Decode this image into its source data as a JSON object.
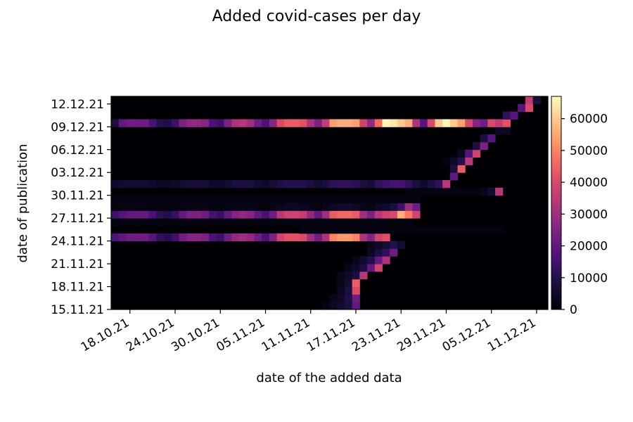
{
  "chart_data": {
    "type": "heatmap",
    "title": "Added covid-cases per day",
    "xlabel": "date of the added data",
    "ylabel": "date of publication",
    "colormap": "magma",
    "vmin": 0,
    "vmax": 67000,
    "x_range": [
      "16.10.21",
      "12.12.21"
    ],
    "y_range": [
      "15.11.21",
      "12.12.21"
    ],
    "x_tick_labels": [
      "18.10.21",
      "24.10.21",
      "30.10.21",
      "05.11.21",
      "11.11.21",
      "17.11.21",
      "23.11.21",
      "29.11.21",
      "05.12.21",
      "11.12.21"
    ],
    "y_tick_labels": [
      "15.11.21",
      "18.11.21",
      "21.11.21",
      "24.11.21",
      "27.11.21",
      "30.11.21",
      "03.12.21",
      "06.12.21",
      "09.12.21",
      "12.12.21"
    ],
    "colorbar_ticks": [
      "0",
      "10000",
      "20000",
      "30000",
      "40000",
      "50000",
      "60000"
    ],
    "colorbar_values": [
      0,
      10000,
      20000,
      30000,
      40000,
      50000,
      60000
    ],
    "rows": [
      {
        "publication": "15.11.21",
        "start": "13.11.21",
        "values": [
          2000,
          4000,
          6000,
          8000,
          20000
        ]
      },
      {
        "publication": "16.11.21",
        "start": "14.11.21",
        "values": [
          3000,
          5000,
          9000,
          22000
        ]
      },
      {
        "publication": "17.11.21",
        "start": "15.11.21",
        "values": [
          4000,
          8000,
          40000
        ]
      },
      {
        "publication": "18.11.21",
        "start": "15.11.21",
        "values": [
          3000,
          6000,
          44000
        ]
      },
      {
        "publication": "19.11.21",
        "start": "15.11.21",
        "values": [
          3000,
          5000,
          8000,
          34000
        ]
      },
      {
        "publication": "20.11.21",
        "start": "16.11.21",
        "values": [
          3000,
          5000,
          8000,
          20000,
          38000
        ]
      },
      {
        "publication": "21.11.21",
        "start": "17.11.21",
        "values": [
          3000,
          6000,
          9000,
          20000,
          32000
        ]
      },
      {
        "publication": "22.11.21",
        "start": "19.11.21",
        "values": [
          4000,
          8000,
          12000,
          22000
        ]
      },
      {
        "publication": "23.11.21",
        "start": "19.11.21",
        "values": [
          3000,
          5000,
          7000,
          10000,
          6000
        ]
      },
      {
        "publication": "24.11.21",
        "start": "16.10.21",
        "values": [
          16000,
          20000,
          22000,
          22000,
          22000,
          18000,
          12000,
          10000,
          14000,
          22000,
          26000,
          26000,
          24000,
          16000,
          14000,
          22000,
          28000,
          30000,
          28000,
          22000,
          16000,
          24000,
          38000,
          42000,
          42000,
          40000,
          30000,
          22000,
          32000,
          50000,
          53000,
          53000,
          50000,
          32000,
          26000,
          38000,
          42000
        ]
      },
      {
        "publication": "25.11.21",
        "start": "10.11.21",
        "values": [
          1500,
          1500,
          1500,
          1500,
          1500,
          1500,
          1500,
          1500,
          1500,
          1500,
          1500,
          1500,
          1500,
          1500,
          1500,
          1500,
          1500,
          1500,
          1500,
          1500,
          1500,
          1500,
          1500,
          1500,
          1500,
          1500,
          1500
        ]
      },
      {
        "publication": "26.11.21",
        "start": "16.10.21",
        "values": [
          1500,
          1500,
          1500,
          1500,
          1500,
          1500,
          1500,
          1500,
          1500,
          1500,
          1500,
          1500,
          1500,
          1500,
          1500,
          1500,
          1500,
          1500,
          1500,
          1500,
          1500,
          1500,
          1500,
          1500,
          1500,
          1500,
          1500,
          1500,
          1500,
          1500,
          1500,
          1500,
          1500,
          1500,
          1500,
          1500,
          1500,
          1500,
          1500,
          1500
        ]
      },
      {
        "publication": "27.11.21",
        "start": "16.10.21",
        "values": [
          14000,
          18000,
          20000,
          20000,
          20000,
          16000,
          11000,
          9000,
          13000,
          20000,
          24000,
          24000,
          22000,
          15000,
          13000,
          20000,
          26000,
          28000,
          26000,
          20000,
          15000,
          22000,
          34000,
          38000,
          38000,
          36000,
          28000,
          20000,
          30000,
          44000,
          46000,
          46000,
          44000,
          30000,
          24000,
          34000,
          38000,
          40000,
          56000,
          48000,
          38000
        ]
      },
      {
        "publication": "28.11.21",
        "start": "16.10.21",
        "values": [
          1500,
          2000,
          2000,
          2000,
          2000,
          1500,
          1500,
          1500,
          1500,
          2000,
          2500,
          2500,
          2500,
          1500,
          1500,
          2000,
          2500,
          3000,
          2500,
          2000,
          1500,
          2500,
          3500,
          4000,
          4000,
          3500,
          3000,
          2000,
          3000,
          4500,
          5000,
          5000,
          4500,
          3000,
          2500,
          4000,
          5000,
          8000,
          14000,
          30000,
          22000
        ]
      },
      {
        "publication": "29.11.21",
        "start": "16.10.21",
        "values": [
          1500,
          1500,
          1500,
          1500,
          1500,
          1500,
          1500,
          1500,
          1500,
          1500,
          1500,
          1500,
          1500,
          1500,
          1500,
          1500,
          1500,
          1500,
          1500,
          1500,
          1500,
          1500,
          1500,
          1500,
          1500,
          1500,
          1500,
          1500,
          1500,
          1500,
          1500,
          1500,
          1500,
          1500,
          1500,
          1500,
          1500,
          1500,
          1500,
          1500,
          1500
        ]
      },
      {
        "publication": "30.11.21",
        "start": "24.11.21",
        "values": [
          1500,
          1500,
          1500,
          1500,
          1500,
          1500,
          1500,
          1500,
          1500,
          1500,
          3000,
          6000,
          34000
        ]
      },
      {
        "publication": "01.12.21",
        "start": "16.10.21",
        "values": [
          5000,
          6000,
          6000,
          6000,
          6000,
          5000,
          4000,
          4000,
          5000,
          6000,
          7000,
          7000,
          7000,
          5000,
          5000,
          6000,
          8000,
          8000,
          8000,
          6000,
          5000,
          7000,
          9000,
          10000,
          10000,
          10000,
          8000,
          6000,
          8000,
          11000,
          12000,
          12000,
          11000,
          8000,
          7000,
          12000,
          14000,
          15000,
          15000,
          12000,
          8000,
          5000,
          8000,
          12000,
          34000
        ]
      },
      {
        "publication": "02.12.21",
        "start": "30.11.21",
        "values": [
          20000
        ]
      },
      {
        "publication": "03.12.21",
        "start": "30.11.21",
        "values": [
          8000,
          44000
        ]
      },
      {
        "publication": "04.12.21",
        "start": "29.11.21",
        "values": [
          1500,
          5000,
          10000,
          34000
        ]
      },
      {
        "publication": "05.12.21",
        "start": "01.12.21",
        "values": [
          4000,
          18000,
          38000
        ]
      },
      {
        "publication": "06.12.21",
        "start": "03.12.21",
        "values": [
          8000,
          24000
        ]
      },
      {
        "publication": "07.12.21",
        "start": "04.12.21",
        "values": [
          8000,
          18000
        ]
      },
      {
        "publication": "08.12.21",
        "start": "06.12.21",
        "values": [
          4000,
          4000
        ]
      },
      {
        "publication": "09.12.21",
        "start": "16.10.21",
        "values": [
          8000,
          20000,
          22000,
          22000,
          22000,
          16000,
          10000,
          9000,
          14000,
          24000,
          28000,
          28000,
          26000,
          16000,
          14000,
          24000,
          32000,
          34000,
          30000,
          22000,
          16000,
          26000,
          40000,
          44000,
          44000,
          42000,
          32000,
          24000,
          36000,
          54000,
          56000,
          56000,
          54000,
          38000,
          28000,
          46000,
          66000,
          64000,
          60000,
          56000,
          32000,
          18000,
          40000,
          60000,
          66000,
          60000,
          54000,
          40000,
          26000,
          22000,
          40000,
          36000,
          42000
        ]
      },
      {
        "publication": "10.12.21",
        "start": "07.12.21",
        "values": [
          12000,
          18000
        ]
      },
      {
        "publication": "11.12.21",
        "start": "09.12.21",
        "values": [
          18000,
          40000
        ]
      },
      {
        "publication": "12.12.21",
        "start": "10.12.21",
        "values": [
          36000,
          8000
        ]
      }
    ]
  }
}
